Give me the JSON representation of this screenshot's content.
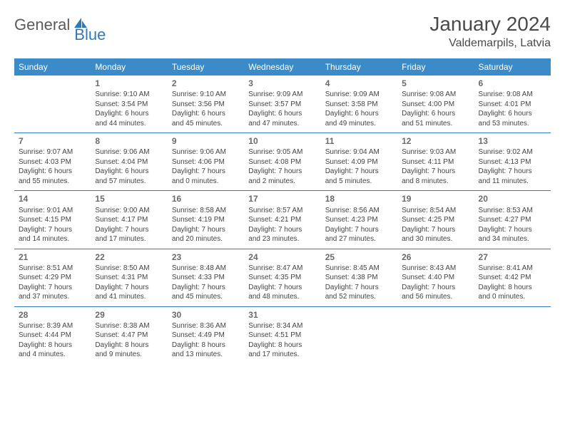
{
  "logo": {
    "part1": "General",
    "part2": "Blue"
  },
  "colors": {
    "header_bg": "#3b8bc9",
    "accent": "#2f79bd",
    "text": "#3a3a3a",
    "daynum": "#6a6a6a"
  },
  "title": "January 2024",
  "location": "Valdemarpils, Latvia",
  "weekdays": [
    "Sunday",
    "Monday",
    "Tuesday",
    "Wednesday",
    "Thursday",
    "Friday",
    "Saturday"
  ],
  "weeks": [
    [
      null,
      {
        "n": "1",
        "sr": "Sunrise: 9:10 AM",
        "ss": "Sunset: 3:54 PM",
        "d1": "Daylight: 6 hours",
        "d2": "and 44 minutes."
      },
      {
        "n": "2",
        "sr": "Sunrise: 9:10 AM",
        "ss": "Sunset: 3:56 PM",
        "d1": "Daylight: 6 hours",
        "d2": "and 45 minutes."
      },
      {
        "n": "3",
        "sr": "Sunrise: 9:09 AM",
        "ss": "Sunset: 3:57 PM",
        "d1": "Daylight: 6 hours",
        "d2": "and 47 minutes."
      },
      {
        "n": "4",
        "sr": "Sunrise: 9:09 AM",
        "ss": "Sunset: 3:58 PM",
        "d1": "Daylight: 6 hours",
        "d2": "and 49 minutes."
      },
      {
        "n": "5",
        "sr": "Sunrise: 9:08 AM",
        "ss": "Sunset: 4:00 PM",
        "d1": "Daylight: 6 hours",
        "d2": "and 51 minutes."
      },
      {
        "n": "6",
        "sr": "Sunrise: 9:08 AM",
        "ss": "Sunset: 4:01 PM",
        "d1": "Daylight: 6 hours",
        "d2": "and 53 minutes."
      }
    ],
    [
      {
        "n": "7",
        "sr": "Sunrise: 9:07 AM",
        "ss": "Sunset: 4:03 PM",
        "d1": "Daylight: 6 hours",
        "d2": "and 55 minutes."
      },
      {
        "n": "8",
        "sr": "Sunrise: 9:06 AM",
        "ss": "Sunset: 4:04 PM",
        "d1": "Daylight: 6 hours",
        "d2": "and 57 minutes."
      },
      {
        "n": "9",
        "sr": "Sunrise: 9:06 AM",
        "ss": "Sunset: 4:06 PM",
        "d1": "Daylight: 7 hours",
        "d2": "and 0 minutes."
      },
      {
        "n": "10",
        "sr": "Sunrise: 9:05 AM",
        "ss": "Sunset: 4:08 PM",
        "d1": "Daylight: 7 hours",
        "d2": "and 2 minutes."
      },
      {
        "n": "11",
        "sr": "Sunrise: 9:04 AM",
        "ss": "Sunset: 4:09 PM",
        "d1": "Daylight: 7 hours",
        "d2": "and 5 minutes."
      },
      {
        "n": "12",
        "sr": "Sunrise: 9:03 AM",
        "ss": "Sunset: 4:11 PM",
        "d1": "Daylight: 7 hours",
        "d2": "and 8 minutes."
      },
      {
        "n": "13",
        "sr": "Sunrise: 9:02 AM",
        "ss": "Sunset: 4:13 PM",
        "d1": "Daylight: 7 hours",
        "d2": "and 11 minutes."
      }
    ],
    [
      {
        "n": "14",
        "sr": "Sunrise: 9:01 AM",
        "ss": "Sunset: 4:15 PM",
        "d1": "Daylight: 7 hours",
        "d2": "and 14 minutes."
      },
      {
        "n": "15",
        "sr": "Sunrise: 9:00 AM",
        "ss": "Sunset: 4:17 PM",
        "d1": "Daylight: 7 hours",
        "d2": "and 17 minutes."
      },
      {
        "n": "16",
        "sr": "Sunrise: 8:58 AM",
        "ss": "Sunset: 4:19 PM",
        "d1": "Daylight: 7 hours",
        "d2": "and 20 minutes."
      },
      {
        "n": "17",
        "sr": "Sunrise: 8:57 AM",
        "ss": "Sunset: 4:21 PM",
        "d1": "Daylight: 7 hours",
        "d2": "and 23 minutes."
      },
      {
        "n": "18",
        "sr": "Sunrise: 8:56 AM",
        "ss": "Sunset: 4:23 PM",
        "d1": "Daylight: 7 hours",
        "d2": "and 27 minutes."
      },
      {
        "n": "19",
        "sr": "Sunrise: 8:54 AM",
        "ss": "Sunset: 4:25 PM",
        "d1": "Daylight: 7 hours",
        "d2": "and 30 minutes."
      },
      {
        "n": "20",
        "sr": "Sunrise: 8:53 AM",
        "ss": "Sunset: 4:27 PM",
        "d1": "Daylight: 7 hours",
        "d2": "and 34 minutes."
      }
    ],
    [
      {
        "n": "21",
        "sr": "Sunrise: 8:51 AM",
        "ss": "Sunset: 4:29 PM",
        "d1": "Daylight: 7 hours",
        "d2": "and 37 minutes."
      },
      {
        "n": "22",
        "sr": "Sunrise: 8:50 AM",
        "ss": "Sunset: 4:31 PM",
        "d1": "Daylight: 7 hours",
        "d2": "and 41 minutes."
      },
      {
        "n": "23",
        "sr": "Sunrise: 8:48 AM",
        "ss": "Sunset: 4:33 PM",
        "d1": "Daylight: 7 hours",
        "d2": "and 45 minutes."
      },
      {
        "n": "24",
        "sr": "Sunrise: 8:47 AM",
        "ss": "Sunset: 4:35 PM",
        "d1": "Daylight: 7 hours",
        "d2": "and 48 minutes."
      },
      {
        "n": "25",
        "sr": "Sunrise: 8:45 AM",
        "ss": "Sunset: 4:38 PM",
        "d1": "Daylight: 7 hours",
        "d2": "and 52 minutes."
      },
      {
        "n": "26",
        "sr": "Sunrise: 8:43 AM",
        "ss": "Sunset: 4:40 PM",
        "d1": "Daylight: 7 hours",
        "d2": "and 56 minutes."
      },
      {
        "n": "27",
        "sr": "Sunrise: 8:41 AM",
        "ss": "Sunset: 4:42 PM",
        "d1": "Daylight: 8 hours",
        "d2": "and 0 minutes."
      }
    ],
    [
      {
        "n": "28",
        "sr": "Sunrise: 8:39 AM",
        "ss": "Sunset: 4:44 PM",
        "d1": "Daylight: 8 hours",
        "d2": "and 4 minutes."
      },
      {
        "n": "29",
        "sr": "Sunrise: 8:38 AM",
        "ss": "Sunset: 4:47 PM",
        "d1": "Daylight: 8 hours",
        "d2": "and 9 minutes."
      },
      {
        "n": "30",
        "sr": "Sunrise: 8:36 AM",
        "ss": "Sunset: 4:49 PM",
        "d1": "Daylight: 8 hours",
        "d2": "and 13 minutes."
      },
      {
        "n": "31",
        "sr": "Sunrise: 8:34 AM",
        "ss": "Sunset: 4:51 PM",
        "d1": "Daylight: 8 hours",
        "d2": "and 17 minutes."
      },
      null,
      null,
      null
    ]
  ]
}
